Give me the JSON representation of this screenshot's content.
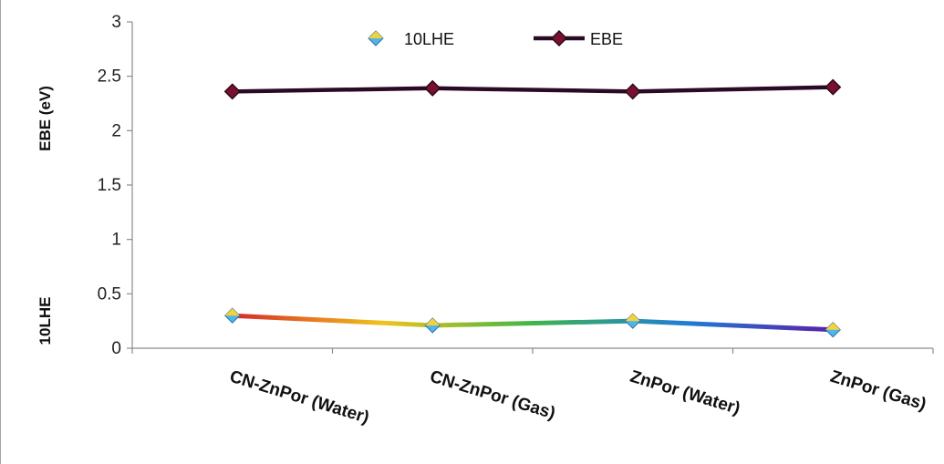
{
  "chart_data": {
    "type": "line",
    "categories": [
      "CN-ZnPor (Water)",
      "CN-ZnPor (Gas)",
      "ZnPor (Water)",
      "ZnPor (Gas)"
    ],
    "series": [
      {
        "name": "10LHE",
        "values": [
          0.3,
          0.21,
          0.25,
          0.17
        ]
      },
      {
        "name": "EBE",
        "values": [
          2.36,
          2.39,
          2.36,
          2.4
        ]
      }
    ],
    "ylim": [
      0,
      3
    ],
    "yticks": [
      "0",
      "0.5",
      "1",
      "1.5",
      "2",
      "2.5",
      "3"
    ],
    "ylabel_upper": "EBE (eV)",
    "ylabel_lower": "10LHE",
    "legend_position": "top-center",
    "grid": false,
    "drop_lines": true,
    "colors": {
      "ebe_line": "#2a0a24",
      "ebe_marker": "#7a1030",
      "lhe_gradient": [
        "#d62828",
        "#f0c419",
        "#3fb54a",
        "#1e7fd6",
        "#5b1fa8"
      ],
      "axis": "#8c8c8c",
      "drop_line": "#1a1a1a"
    },
    "marker": "diamond"
  }
}
